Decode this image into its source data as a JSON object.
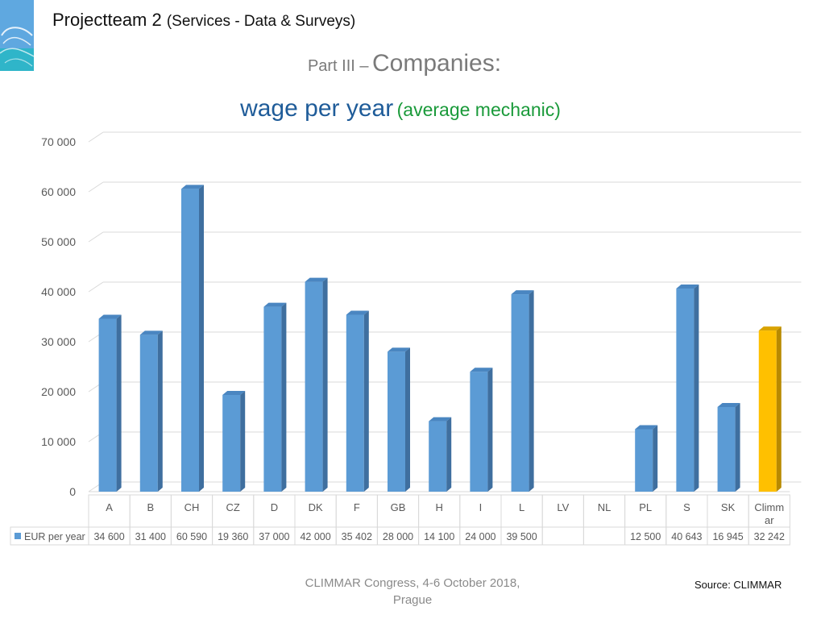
{
  "header": {
    "title": "Projectteam 2",
    "subtitle": "(Services - Data & Surveys)",
    "part_lead": "Part III –",
    "part_big": "Companies:"
  },
  "colors": {
    "bar": "#5b9bd5",
    "highlight": "#ffc000",
    "title_blue": "#1f5c99",
    "title_green": "#1a9a3a"
  },
  "chart_data": {
    "type": "bar",
    "title_main": "wage per year",
    "title_paren": "(average mechanic)",
    "three_d": true,
    "categories": [
      "A",
      "B",
      "CH",
      "CZ",
      "D",
      "DK",
      "F",
      "GB",
      "H",
      "I",
      "L",
      "LV",
      "NL",
      "PL",
      "S",
      "SK",
      "Climmar"
    ],
    "category_labels": [
      "A",
      "B",
      "CH",
      "CZ",
      "D",
      "DK",
      "F",
      "GB",
      "H",
      "I",
      "L",
      "LV",
      "NL",
      "PL",
      "S",
      "SK",
      "Climm ar"
    ],
    "series": [
      {
        "name": "EUR per year",
        "values": [
          34600,
          31400,
          60590,
          19360,
          37000,
          42000,
          35402,
          28000,
          14100,
          24000,
          39500,
          null,
          null,
          12500,
          40643,
          16945,
          32242
        ],
        "value_labels": [
          "34 600",
          "31 400",
          "60 590",
          "19 360",
          "37 000",
          "42 000",
          "35 402",
          "28 000",
          "14 100",
          "24 000",
          "39 500",
          "",
          "",
          "12 500",
          "40 643",
          "16 945",
          "32 242"
        ]
      }
    ],
    "highlight_category": "Climmar",
    "ylim": [
      0,
      70000
    ],
    "yticks": [
      0,
      10000,
      20000,
      30000,
      40000,
      50000,
      60000,
      70000
    ],
    "ytick_labels": [
      "0",
      "10 000",
      "20 000",
      "30 000",
      "40 000",
      "50 000",
      "60 000",
      "70 000"
    ],
    "grid": true,
    "data_table": true
  },
  "footer": {
    "line1": "CLIMMAR Congress, 4-6 October 2018,",
    "line2": "Prague",
    "source": "Source: CLIMMAR"
  }
}
